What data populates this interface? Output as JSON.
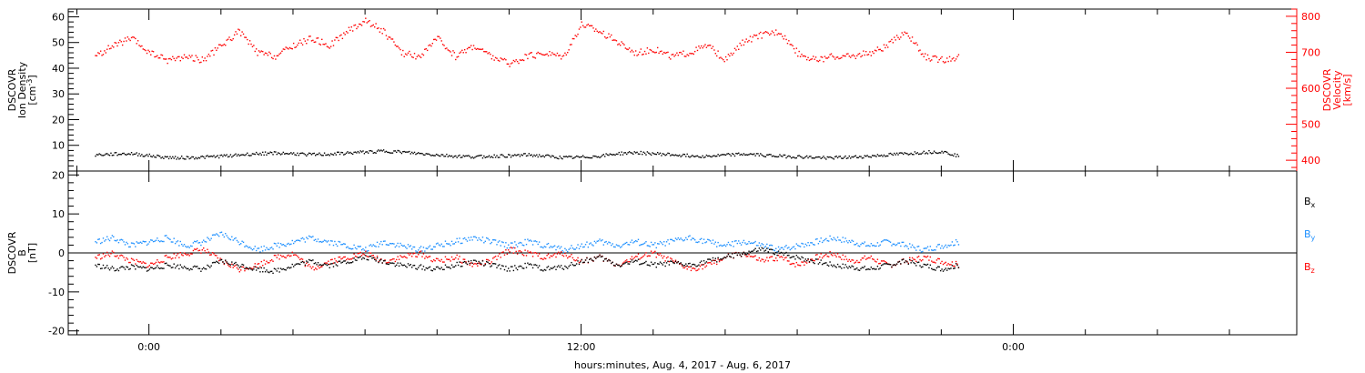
{
  "chart_data": [
    {
      "type": "scatter",
      "panel": "top",
      "ylabel_left": [
        "DSCOVR",
        "Ion Density",
        "[cm^-3]"
      ],
      "ylabel_right": [
        "DSCOVR",
        "Velocity",
        "[km/s]"
      ],
      "ylim_left": [
        0,
        63
      ],
      "yticks_left": [
        0,
        10,
        20,
        30,
        40,
        50,
        60
      ],
      "ylim_right": [
        370,
        820
      ],
      "yticks_right": [
        400,
        500,
        600,
        700,
        800
      ],
      "series": [
        {
          "name": "Ion Density",
          "axis": "left",
          "color": "#000000",
          "x": [
            -1.5,
            -1,
            -0.5,
            0,
            0.5,
            1,
            1.5,
            2,
            2.5,
            3,
            3.5,
            4,
            4.5,
            5,
            5.5,
            6,
            6.5,
            7,
            7.5,
            8,
            8.5,
            9,
            9.5,
            10,
            10.5,
            11,
            11.5,
            12,
            12.5,
            13,
            13.5,
            14,
            14.5,
            15,
            15.5,
            16,
            16.5,
            17,
            17.5,
            18,
            18.5,
            19,
            19.5,
            20,
            20.5,
            21,
            21.5,
            22,
            22.5
          ],
          "y": [
            6.5,
            6.8,
            7,
            6.2,
            5.5,
            5.4,
            5.6,
            6,
            6.5,
            7,
            7.2,
            7,
            6.6,
            6.8,
            7.2,
            7.6,
            8,
            7.6,
            7,
            6.5,
            6,
            5.8,
            6,
            6.2,
            6.5,
            6,
            5.4,
            5.6,
            6,
            7,
            7.4,
            7,
            6.6,
            6.2,
            6,
            6.4,
            6.8,
            6.5,
            6,
            5.8,
            5.5,
            5.4,
            5.6,
            6,
            6.5,
            7,
            7.5,
            7.8,
            6
          ]
        },
        {
          "name": "Velocity",
          "axis": "right",
          "color": "#ff0000",
          "x": [
            -1.5,
            -1,
            -0.5,
            0,
            0.5,
            1,
            1.5,
            2,
            2.5,
            3,
            3.5,
            4,
            4.5,
            5,
            5.5,
            6,
            6.5,
            7,
            7.5,
            8,
            8.5,
            9,
            9.5,
            10,
            10.5,
            11,
            11.5,
            12,
            12.5,
            13,
            13.5,
            14,
            14.5,
            15,
            15.5,
            16,
            16.5,
            17,
            17.5,
            18,
            18.5,
            19,
            19.5,
            20,
            20.5,
            21,
            21.5,
            22,
            22.5
          ],
          "y": [
            690,
            720,
            740,
            700,
            680,
            690,
            680,
            720,
            760,
            700,
            690,
            720,
            740,
            720,
            760,
            790,
            760,
            700,
            690,
            740,
            690,
            720,
            690,
            670,
            690,
            700,
            690,
            780,
            760,
            730,
            700,
            710,
            690,
            700,
            720,
            680,
            730,
            750,
            760,
            700,
            680,
            690,
            690,
            700,
            720,
            760,
            690,
            680,
            690
          ]
        }
      ]
    },
    {
      "type": "scatter",
      "panel": "bottom",
      "ylabel": [
        "DSCOVR",
        "B",
        "[nT]"
      ],
      "ylim": [
        -21,
        21
      ],
      "yticks": [
        -20,
        -10,
        0,
        10,
        20
      ],
      "xlabel": "hours:minutes, Aug.  4, 2017 - Aug.  6, 2017",
      "xlim": [
        -2.24,
        31.87
      ],
      "xticks": [
        0,
        12,
        24
      ],
      "xtick_labels": [
        "0:00",
        "12:00",
        "0:00"
      ],
      "series": [
        {
          "name": "Bx",
          "color": "#000000",
          "x": [
            -1.5,
            -1,
            -0.5,
            0,
            0.5,
            1,
            1.5,
            2,
            2.5,
            3,
            3.5,
            4,
            4.5,
            5,
            5.5,
            6,
            6.5,
            7,
            7.5,
            8,
            8.5,
            9,
            9.5,
            10,
            10.5,
            11,
            11.5,
            12,
            12.5,
            13,
            13.5,
            14,
            14.5,
            15,
            15.5,
            16,
            16.5,
            17,
            17.5,
            18,
            18.5,
            19,
            19.5,
            20,
            20.5,
            21,
            21.5,
            22,
            22.5
          ],
          "y": [
            -3,
            -4,
            -3.5,
            -4,
            -3,
            -3.5,
            -4,
            -2,
            -3,
            -4,
            -4.5,
            -3,
            -2,
            -3,
            -2,
            -1,
            -2,
            -3,
            -3.5,
            -4,
            -3,
            -2,
            -3,
            -4,
            -3,
            -4,
            -3.5,
            -2,
            -1,
            -3,
            -2,
            -3,
            -2.5,
            -3,
            -2,
            -1,
            0,
            1,
            0,
            -1,
            -2,
            -3,
            -3.5,
            -4,
            -3,
            -2,
            -3,
            -4,
            -3
          ]
        },
        {
          "name": "By",
          "color": "#1e90ff",
          "x": [
            -1.5,
            -1,
            -0.5,
            0,
            0.5,
            1,
            1.5,
            2,
            2.5,
            3,
            3.5,
            4,
            4.5,
            5,
            5.5,
            6,
            6.5,
            7,
            7.5,
            8,
            8.5,
            9,
            9.5,
            10,
            10.5,
            11,
            11.5,
            12,
            12.5,
            13,
            13.5,
            14,
            14.5,
            15,
            15.5,
            16,
            16.5,
            17,
            17.5,
            18,
            18.5,
            19,
            19.5,
            20,
            20.5,
            21,
            21.5,
            22,
            22.5
          ],
          "y": [
            3,
            4,
            2,
            3,
            4,
            2,
            3,
            5,
            3,
            1,
            2,
            3,
            4,
            3,
            2,
            1,
            3,
            2,
            1,
            2,
            3,
            4,
            3,
            2,
            3,
            2,
            1,
            2,
            3,
            2,
            3,
            2,
            3,
            4,
            3,
            2,
            3,
            2,
            1,
            2,
            3,
            4,
            3,
            2,
            3,
            2,
            1,
            2,
            3
          ]
        },
        {
          "name": "Bz",
          "color": "#ff0000",
          "x": [
            -1.5,
            -1,
            -0.5,
            0,
            0.5,
            1,
            1.5,
            2,
            2.5,
            3,
            3.5,
            4,
            4.5,
            5,
            5.5,
            6,
            6.5,
            7,
            7.5,
            8,
            8.5,
            9,
            9.5,
            10,
            10.5,
            11,
            11.5,
            12,
            12.5,
            13,
            13.5,
            14,
            14.5,
            15,
            15.5,
            16,
            16.5,
            17,
            17.5,
            18,
            18.5,
            19,
            19.5,
            20,
            20.5,
            21,
            21.5,
            22,
            22.5
          ],
          "y": [
            -1,
            0,
            -2,
            -3,
            -1,
            0,
            1,
            -2,
            -4,
            -3,
            -1,
            0,
            -4,
            -2,
            -1,
            0,
            -2,
            -1,
            0,
            -2,
            -1,
            -3,
            -2,
            1,
            0,
            -1,
            0,
            -2,
            -1,
            -3,
            -1,
            0,
            -2,
            -4,
            -3,
            -1,
            0,
            -2,
            -1,
            -3,
            -1,
            0,
            -2,
            -1,
            -3,
            -2,
            -1,
            -2,
            -3
          ]
        }
      ],
      "legend": [
        {
          "label": "B",
          "sub": "x",
          "color": "#000000"
        },
        {
          "label": "B",
          "sub": "y",
          "color": "#1e90ff"
        },
        {
          "label": "B",
          "sub": "z",
          "color": "#ff0000"
        }
      ]
    }
  ]
}
